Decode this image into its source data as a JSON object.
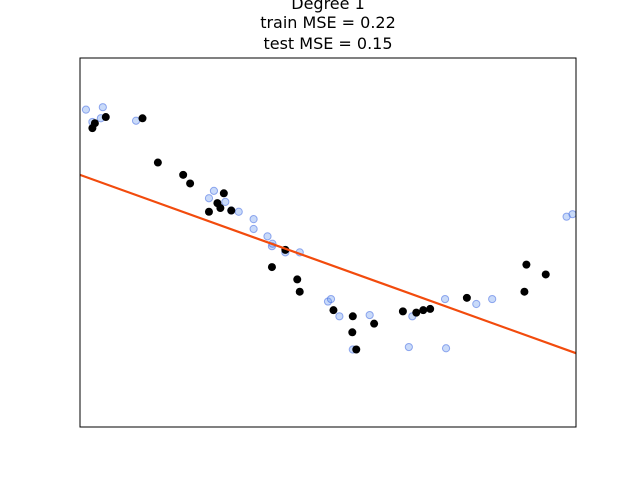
{
  "chart_data": {
    "type": "scatter",
    "title_lines": [
      "Degree 1",
      "train MSE = 0.22",
      "test MSE = 0.15"
    ],
    "xlabel": "",
    "ylabel": "",
    "xlim": [
      0,
      1
    ],
    "ylim": [
      -1.5,
      1.5
    ],
    "xticks": [],
    "yticks": [],
    "grid": false,
    "colors": {
      "train": "#000000",
      "test_fill": "#6495ed",
      "test_edge": "#4169e1",
      "fit_line": "#f24b0d"
    },
    "series": [
      {
        "kind": "scatter",
        "points": [
          [
            0.025,
            0.93
          ],
          [
            0.03,
            0.97
          ],
          [
            0.052,
            1.02
          ],
          [
            0.126,
            1.01
          ],
          [
            0.157,
            0.65
          ],
          [
            0.208,
            0.55
          ],
          [
            0.222,
            0.48
          ],
          [
            0.26,
            0.25
          ],
          [
            0.277,
            0.32
          ],
          [
            0.283,
            0.28
          ],
          [
            0.29,
            0.4
          ],
          [
            0.305,
            0.26
          ],
          [
            0.387,
            -0.2
          ],
          [
            0.414,
            -0.06
          ],
          [
            0.438,
            -0.3
          ],
          [
            0.443,
            -0.4
          ],
          [
            0.511,
            -0.55
          ],
          [
            0.549,
            -0.73
          ],
          [
            0.55,
            -0.6
          ],
          [
            0.557,
            -0.87
          ],
          [
            0.593,
            -0.66
          ],
          [
            0.651,
            -0.56
          ],
          [
            0.678,
            -0.57
          ],
          [
            0.692,
            -0.55
          ],
          [
            0.706,
            -0.54
          ],
          [
            0.78,
            -0.45
          ],
          [
            0.896,
            -0.4
          ],
          [
            0.9,
            -0.18
          ],
          [
            0.939,
            -0.26
          ]
        ]
      },
      {
        "kind": "scatter",
        "points": [
          [
            0.012,
            1.08
          ],
          [
            0.025,
            0.98
          ],
          [
            0.042,
            1.01
          ],
          [
            0.046,
            1.1
          ],
          [
            0.113,
            0.99
          ],
          [
            0.26,
            0.36
          ],
          [
            0.27,
            0.42
          ],
          [
            0.293,
            0.33
          ],
          [
            0.305,
            0.26
          ],
          [
            0.32,
            0.25
          ],
          [
            0.35,
            0.19
          ],
          [
            0.35,
            0.11
          ],
          [
            0.378,
            0.05
          ],
          [
            0.387,
            -0.03
          ],
          [
            0.388,
            -0.01
          ],
          [
            0.414,
            -0.08
          ],
          [
            0.443,
            -0.08
          ],
          [
            0.5,
            -0.48
          ],
          [
            0.506,
            -0.46
          ],
          [
            0.523,
            -0.6
          ],
          [
            0.55,
            -0.87
          ],
          [
            0.584,
            -0.59
          ],
          [
            0.663,
            -0.85
          ],
          [
            0.67,
            -0.6
          ],
          [
            0.736,
            -0.46
          ],
          [
            0.738,
            -0.86
          ],
          [
            0.799,
            -0.5
          ],
          [
            0.831,
            -0.46
          ],
          [
            0.981,
            0.21
          ],
          [
            0.993,
            0.23
          ]
        ]
      },
      {
        "kind": "line",
        "x": [
          0,
          1
        ],
        "y": [
          0.55,
          -0.9
        ]
      }
    ]
  }
}
